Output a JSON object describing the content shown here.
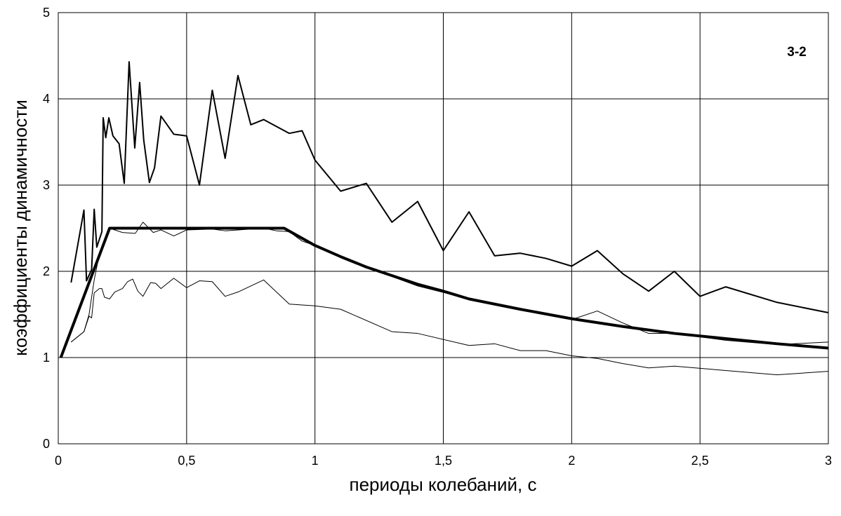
{
  "chart_data": {
    "type": "line",
    "annotation": "3-2",
    "xlabel": "периоды колебаний, с",
    "ylabel": "коэффициенты динамичности",
    "xlim": [
      0,
      3
    ],
    "ylim": [
      0,
      5
    ],
    "xticks": [
      0,
      {
        "value": 0.5,
        "label": "0,5"
      },
      1,
      {
        "value": 1.5,
        "label": "1,5"
      },
      2,
      {
        "value": 2.5,
        "label": "2,5"
      },
      3
    ],
    "yticks": [
      0,
      1,
      2,
      3,
      4,
      5
    ],
    "grid": true,
    "series": [
      {
        "color": "#000000",
        "line_width": 2,
        "x": [
          0.05,
          0.1,
          0.11,
          0.13,
          0.14,
          0.15,
          0.17,
          0.175,
          0.185,
          0.197,
          0.213,
          0.237,
          0.257,
          0.276,
          0.298,
          0.317,
          0.333,
          0.355,
          0.375,
          0.4,
          0.45,
          0.5,
          0.55,
          0.6,
          0.65,
          0.7,
          0.75,
          0.8,
          0.9,
          0.95,
          1.0,
          1.1,
          1.2,
          1.3,
          1.4,
          1.5,
          1.6,
          1.7,
          1.8,
          1.9,
          2.0,
          2.1,
          2.2,
          2.3,
          2.4,
          2.5,
          2.6,
          2.8,
          3.0
        ],
        "values": [
          1.87,
          2.71,
          1.89,
          2.02,
          2.72,
          2.28,
          2.46,
          3.78,
          3.55,
          3.78,
          3.57,
          3.48,
          3.02,
          4.43,
          3.43,
          4.19,
          3.52,
          3.03,
          3.2,
          3.8,
          3.59,
          3.57,
          3.0,
          4.1,
          3.31,
          4.27,
          3.7,
          3.76,
          3.6,
          3.63,
          3.29,
          2.93,
          3.02,
          2.57,
          2.81,
          2.24,
          2.69,
          2.18,
          2.21,
          2.15,
          2.06,
          2.24,
          1.97,
          1.77,
          2.0,
          1.71,
          1.82,
          1.64,
          1.52
        ]
      },
      {
        "color": "#000000",
        "line_width": 4,
        "x": [
          0.01,
          0.2,
          0.88,
          1.0,
          1.1,
          1.2,
          1.3,
          1.4,
          1.5,
          1.6,
          1.8,
          2.0,
          2.2,
          2.4,
          2.6,
          2.8,
          3.0
        ],
        "values": [
          1,
          2.5,
          2.5,
          2.3,
          2.17,
          2.05,
          1.95,
          1.85,
          1.77,
          1.68,
          1.56,
          1.45,
          1.36,
          1.28,
          1.22,
          1.16,
          1.11
        ]
      },
      {
        "color": "#000000",
        "line_width": 1,
        "x": [
          0.05,
          0.1,
          0.12,
          0.14,
          0.16,
          0.2,
          0.25,
          0.3,
          0.33,
          0.37,
          0.4,
          0.45,
          0.5,
          0.6,
          0.65,
          0.7,
          0.8,
          0.85,
          0.9,
          0.95,
          1.0,
          1.2,
          1.4,
          1.6,
          1.8,
          2.0,
          2.1,
          2.2,
          2.3,
          2.4,
          2.6,
          2.8,
          3.0
        ],
        "values": [
          1.18,
          1.3,
          1.5,
          1.9,
          2.2,
          2.5,
          2.45,
          2.44,
          2.57,
          2.45,
          2.48,
          2.41,
          2.48,
          2.49,
          2.47,
          2.48,
          2.5,
          2.47,
          2.46,
          2.35,
          2.3,
          2.05,
          1.83,
          1.68,
          1.56,
          1.44,
          1.54,
          1.4,
          1.28,
          1.28,
          1.2,
          1.15,
          1.18
        ]
      },
      {
        "color": "#000000",
        "line_width": 1,
        "x": [
          0.05,
          0.1,
          0.12,
          0.13,
          0.14,
          0.16,
          0.17,
          0.18,
          0.2,
          0.22,
          0.25,
          0.27,
          0.29,
          0.31,
          0.33,
          0.36,
          0.38,
          0.4,
          0.45,
          0.5,
          0.55,
          0.6,
          0.65,
          0.7,
          0.8,
          0.9,
          1.0,
          1.1,
          1.3,
          1.4,
          1.6,
          1.7,
          1.8,
          1.9,
          2.0,
          2.1,
          2.2,
          2.3,
          2.4,
          2.6,
          2.8,
          3.0
        ],
        "values": [
          1.18,
          1.3,
          1.48,
          1.46,
          1.75,
          1.8,
          1.8,
          1.7,
          1.68,
          1.76,
          1.8,
          1.88,
          1.91,
          1.77,
          1.71,
          1.87,
          1.86,
          1.8,
          1.92,
          1.81,
          1.89,
          1.88,
          1.71,
          1.76,
          1.9,
          1.62,
          1.6,
          1.56,
          1.3,
          1.28,
          1.14,
          1.16,
          1.08,
          1.08,
          1.02,
          0.99,
          0.93,
          0.88,
          0.9,
          0.85,
          0.8,
          0.84
        ]
      }
    ]
  }
}
